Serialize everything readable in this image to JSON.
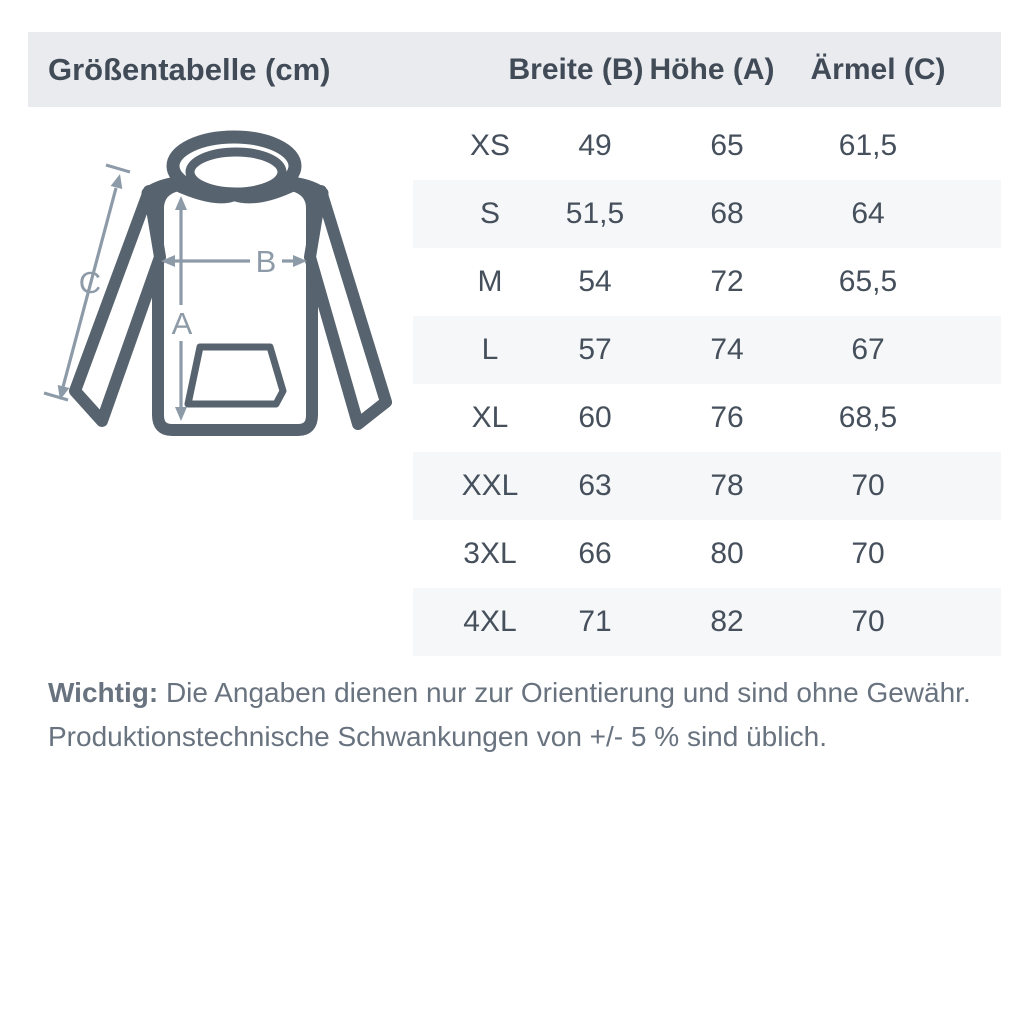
{
  "header": {
    "title": "Größentabelle (cm)",
    "columns": [
      "Breite (B)",
      "Höhe (A)",
      "Ärmel (C)"
    ]
  },
  "table": {
    "rows": [
      {
        "size": "XS",
        "values": [
          "49",
          "65",
          "61,5"
        ]
      },
      {
        "size": "S",
        "values": [
          "51,5",
          "68",
          "64"
        ]
      },
      {
        "size": "M",
        "values": [
          "54",
          "72",
          "65,5"
        ]
      },
      {
        "size": "L",
        "values": [
          "57",
          "74",
          "67"
        ]
      },
      {
        "size": "XL",
        "values": [
          "60",
          "76",
          "68,5"
        ]
      },
      {
        "size": "XXL",
        "values": [
          "63",
          "78",
          "70"
        ]
      },
      {
        "size": "3XL",
        "values": [
          "66",
          "80",
          "70"
        ]
      },
      {
        "size": "4XL",
        "values": [
          "71",
          "82",
          "70"
        ]
      }
    ]
  },
  "diagram": {
    "label_a": "A",
    "label_b": "B",
    "label_c": "C"
  },
  "footer": {
    "important_label": "Wichtig:",
    "line1": "Die Angaben dienen nur zur Orientierung und sind ohne Gewähr.",
    "line2": "Produktionstechnische Schwankungen von +/- 5 % sind üblich."
  },
  "colors": {
    "header_band": "#e9ebef",
    "row_stripe": "#f6f7f9",
    "header_text": "#414b57",
    "table_text": "#46505c",
    "garment_outline": "#57636e",
    "dimension_arrow": "#8d9aa8",
    "footer_text": "#68737f"
  },
  "chart_data": {
    "type": "table",
    "title": "Größentabelle (cm)",
    "columns": [
      "",
      "Breite (B)",
      "Höhe (A)",
      "Ärmel (C)"
    ],
    "rows": [
      [
        "XS",
        "49",
        "65",
        "61,5"
      ],
      [
        "S",
        "51,5",
        "68",
        "64"
      ],
      [
        "M",
        "54",
        "72",
        "65,5"
      ],
      [
        "L",
        "57",
        "74",
        "67"
      ],
      [
        "XL",
        "60",
        "76",
        "68,5"
      ],
      [
        "XXL",
        "63",
        "78",
        "70"
      ],
      [
        "3XL",
        "66",
        "80",
        "70"
      ],
      [
        "4XL",
        "71",
        "82",
        "70"
      ]
    ]
  }
}
